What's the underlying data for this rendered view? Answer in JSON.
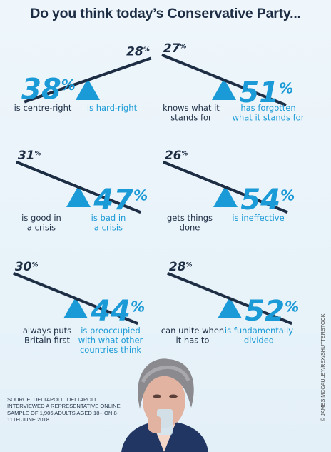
{
  "title": "Do you think today’s Conservative Party...",
  "colors": {
    "accent": "#1a9ad6",
    "dark": "#1d2d44",
    "background": "#eef6fb"
  },
  "chart_data": [
    {
      "type": "bar",
      "categories": [
        "is centre-right",
        "is hard-right"
      ],
      "values": [
        38,
        28
      ],
      "unit": "%"
    },
    {
      "type": "bar",
      "categories": [
        "knows what it stands for",
        "has forgotten what it stands for"
      ],
      "values": [
        27,
        51
      ],
      "unit": "%"
    },
    {
      "type": "bar",
      "categories": [
        "is good in a crisis",
        "is bad in a crisis"
      ],
      "values": [
        31,
        47
      ],
      "unit": "%"
    },
    {
      "type": "bar",
      "categories": [
        "gets things done",
        "is ineffective"
      ],
      "values": [
        26,
        54
      ],
      "unit": "%"
    },
    {
      "type": "bar",
      "categories": [
        "always puts Britain first",
        "is preoccupied with what other countries think"
      ],
      "values": [
        30,
        44
      ],
      "unit": "%"
    },
    {
      "type": "bar",
      "categories": [
        "can unite when it has to",
        "is fundamentally divided"
      ],
      "values": [
        28,
        52
      ],
      "unit": "%"
    }
  ],
  "source": "SOURCE: DELTAPOLL. DELTAPOLL INTERVIEWED A REPRESENTATIVE ONLINE SAMPLE OF 1,906 ADULTS AGED 18+ ON 8-11TH JUNE 2018",
  "credit": "© JAMES MCCAULEY/REX/SHUTTERSTOCK"
}
